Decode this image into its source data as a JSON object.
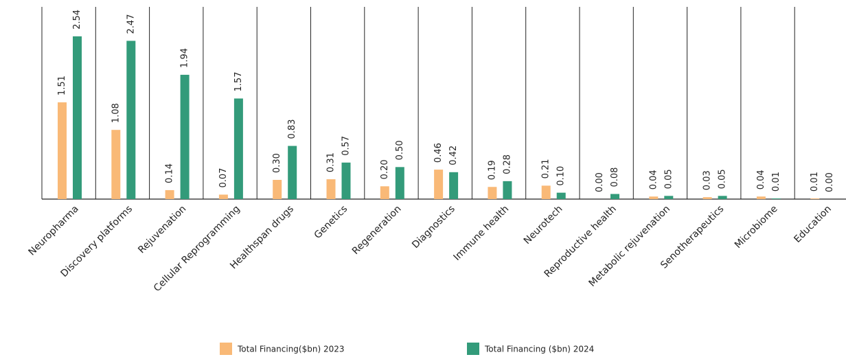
{
  "chart_data": {
    "type": "bar",
    "categories": [
      "Neuropharma",
      "Discovery platforms",
      "Rejuvenation",
      "Cellular Reprogramming",
      "Healthspan drugs",
      "Genetics",
      "Regeneration",
      "Diagnostics",
      "Immune health",
      "Neurotech",
      "Reproductive health",
      "Metabolic rejuvenation",
      "Senotherapeutics",
      "Microbiome",
      "Education"
    ],
    "series": [
      {
        "name": "Total Financing($bn) 2023",
        "color": "#f9b977",
        "values": [
          1.51,
          1.08,
          0.14,
          0.07,
          0.3,
          0.31,
          0.2,
          0.46,
          0.19,
          0.21,
          0,
          0.04,
          0.03,
          0.04,
          0.01
        ],
        "value_labels": [
          "1.51",
          "1.08",
          "0.14",
          "0.07",
          "0.30",
          "0.31",
          "0.20",
          "0.46",
          "0.19",
          "0.21",
          "0.00",
          "0.04",
          "0.03",
          "0.04",
          "0.01"
        ]
      },
      {
        "name": "Total Financing ($bn) 2024",
        "color": "#339b7a",
        "values": [
          2.54,
          2.47,
          1.94,
          1.57,
          0.83,
          0.57,
          0.5,
          0.42,
          0.28,
          0.1,
          0.08,
          0.05,
          0.05,
          0.01,
          0
        ],
        "value_labels": [
          "2.54",
          "2.47",
          "1.94",
          "1.57",
          "0.83",
          "0.57",
          "0.50",
          "0.42",
          "0.28",
          "0.10",
          "0.08",
          "0.05",
          "0.05",
          "0.01",
          "0.00"
        ]
      }
    ],
    "ylim": [
      0,
      3
    ]
  }
}
